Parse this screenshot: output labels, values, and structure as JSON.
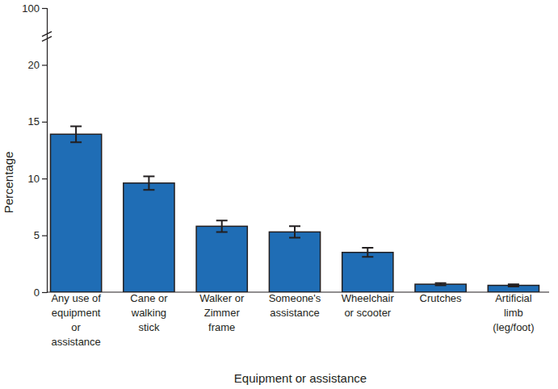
{
  "chart_data": {
    "type": "bar",
    "x_label": "Equipment or assistance",
    "y_label": "Percentage",
    "categories": [
      "Any use of equipment or assistance",
      "Cane or walking stick",
      "Walker or Zimmer frame",
      "Someone's assistance",
      "Wheelchair or scooter",
      "Crutches",
      "Artificial limb (leg/foot)"
    ],
    "values": [
      13.9,
      9.6,
      5.8,
      5.3,
      3.5,
      0.7,
      0.6
    ],
    "errors": [
      0.7,
      0.6,
      0.5,
      0.5,
      0.4,
      0.1,
      0.1
    ],
    "color": "#1f6db5",
    "ylim": [
      0,
      100
    ],
    "yticks": [
      0,
      5,
      10,
      15,
      20,
      100
    ],
    "grid": false
  }
}
